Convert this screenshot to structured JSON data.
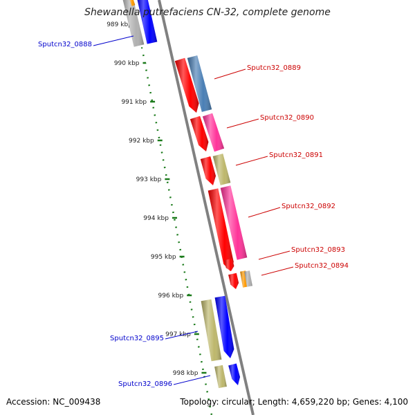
{
  "title": "Shewanella putrefaciens CN-32, complete genome",
  "footer": {
    "accession": "Accession: NC_009438",
    "topology": "Topology: circular; Length: 4,659,220 bp; Genes: 4,100"
  },
  "colors": {
    "backbone": "#808080",
    "tick": "#1a7a1a",
    "label_forward": "#cc0000",
    "label_reverse": "#0000cc",
    "red": "#ff0000",
    "steelblue": "#4a7fb5",
    "pink": "#ff3399",
    "khaki": "#bdb76b",
    "orange": "#ff9900",
    "gray": "#b0b0b0",
    "blue": "#0000ff"
  },
  "kbp_ticks": [
    "989 kbp",
    "990 kbp",
    "991 kbp",
    "992 kbp",
    "993 kbp",
    "994 kbp",
    "995 kbp",
    "996 kbp",
    "997 kbp",
    "998 kbp"
  ],
  "gene_labels": [
    {
      "text": "Sputcn32_0888",
      "strand": "reverse"
    },
    {
      "text": "Sputcn32_0889",
      "strand": "forward"
    },
    {
      "text": "Sputcn32_0890",
      "strand": "forward"
    },
    {
      "text": "Sputcn32_0891",
      "strand": "forward"
    },
    {
      "text": "Sputcn32_0892",
      "strand": "forward"
    },
    {
      "text": "Sputcn32_0893",
      "strand": "forward"
    },
    {
      "text": "Sputcn32_0894",
      "strand": "forward"
    },
    {
      "text": "Sputcn32_0895",
      "strand": "reverse"
    },
    {
      "text": "Sputcn32_0896",
      "strand": "reverse"
    }
  ]
}
